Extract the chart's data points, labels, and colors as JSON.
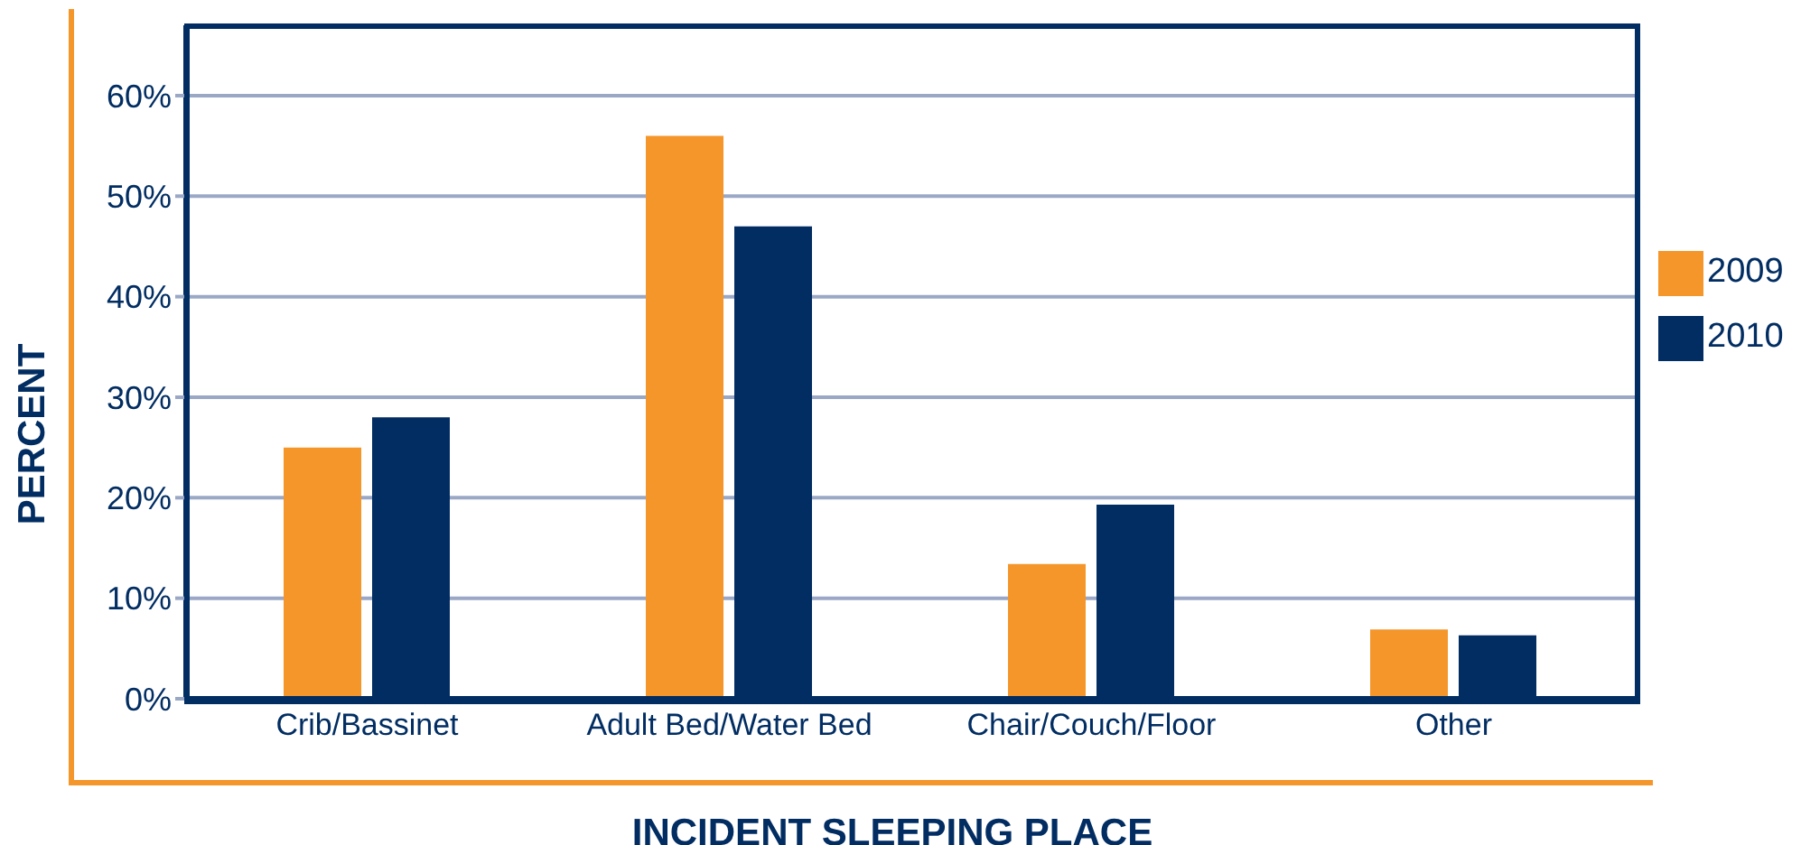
{
  "chart_data": {
    "type": "bar",
    "xlabel": "INCIDENT SLEEPING PLACE",
    "ylabel": "PERCENT",
    "categories": [
      "Crib/Bassinet",
      "Adult Bed/Water Bed",
      "Chair/Couch/Floor",
      "Other"
    ],
    "series": [
      {
        "name": "2009",
        "color": "#f5962a",
        "values": [
          25,
          56,
          13.4,
          6.9
        ]
      },
      {
        "name": "2010",
        "color": "#012d62",
        "values": [
          28,
          47,
          19.3,
          6.3
        ]
      }
    ],
    "ylim": [
      0,
      67
    ],
    "yticks": [
      {
        "value": 0,
        "label": "0%"
      },
      {
        "value": 10,
        "label": "10%"
      },
      {
        "value": 20,
        "label": "20%"
      },
      {
        "value": 30,
        "label": "30%"
      },
      {
        "value": 40,
        "label": "40%"
      },
      {
        "value": 50,
        "label": "50%"
      },
      {
        "value": 60,
        "label": "60%"
      }
    ],
    "grid": "y",
    "legend": "right"
  }
}
